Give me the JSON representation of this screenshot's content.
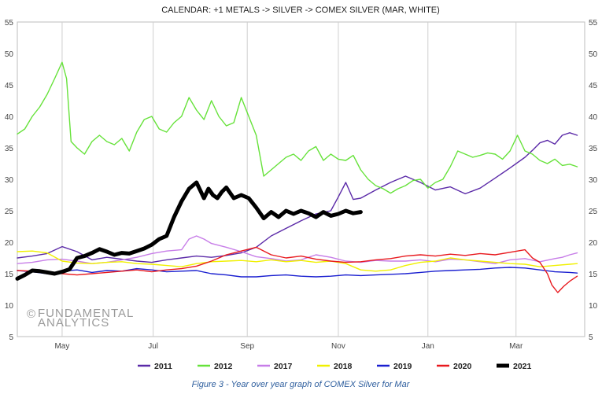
{
  "chart_data": {
    "type": "line",
    "title": "CALENDAR: +1 METALS -> SILVER -> COMEX SILVER (MAR, WHITE)",
    "xlabel": "",
    "ylabel": "",
    "x_tick_labels": [
      "May",
      "Jul",
      "Sep",
      "Nov",
      "Jan",
      "Mar"
    ],
    "x_tick_day_index": [
      30,
      91,
      154,
      215,
      275,
      334
    ],
    "x_range_days": [
      0,
      380
    ],
    "y_ticks": [
      5,
      10,
      15,
      20,
      25,
      30,
      35,
      40,
      45,
      50,
      55
    ],
    "ylim": [
      5,
      55
    ],
    "grid": "vertical lines at month ticks",
    "legend_position": "bottom",
    "watermark_lines": [
      "FUNDAMENTAL",
      "ANALYTICS"
    ],
    "series": [
      {
        "name": "2011",
        "color": "#5b2aa8",
        "width": 1.4,
        "x": [
          0,
          10,
          20,
          30,
          40,
          50,
          60,
          70,
          80,
          90,
          100,
          110,
          120,
          130,
          140,
          150,
          160,
          170,
          180,
          190,
          200,
          210,
          215,
          220,
          225,
          230,
          240,
          250,
          260,
          270,
          280,
          290,
          300,
          310,
          320,
          330,
          340,
          345,
          350,
          355,
          360,
          365,
          370,
          375
        ],
        "y": [
          17.5,
          17.8,
          18.2,
          19.3,
          18.5,
          17.2,
          17.6,
          17.3,
          17.0,
          16.8,
          17.2,
          17.5,
          17.8,
          17.6,
          17.9,
          18.3,
          19.2,
          21.0,
          22.2,
          23.4,
          24.5,
          25.0,
          27.2,
          29.5,
          26.8,
          27.0,
          28.3,
          29.5,
          30.5,
          29.5,
          28.3,
          28.8,
          27.7,
          28.6,
          30.2,
          31.8,
          33.5,
          34.6,
          35.8,
          36.2,
          35.6,
          37.0,
          37.4,
          37.0
        ]
      },
      {
        "name": "2012",
        "color": "#66e23a",
        "width": 1.4,
        "x": [
          0,
          5,
          10,
          15,
          20,
          25,
          30,
          33,
          36,
          40,
          45,
          50,
          55,
          60,
          65,
          70,
          75,
          80,
          85,
          90,
          95,
          100,
          105,
          110,
          115,
          120,
          125,
          130,
          135,
          140,
          145,
          150,
          155,
          160,
          165,
          170,
          175,
          180,
          185,
          190,
          195,
          200,
          205,
          210,
          215,
          220,
          225,
          230,
          235,
          240,
          245,
          250,
          255,
          260,
          265,
          270,
          275,
          280,
          285,
          290,
          295,
          300,
          305,
          310,
          315,
          320,
          325,
          330,
          335,
          340,
          345,
          350,
          355,
          360,
          365,
          370,
          375
        ],
        "y": [
          37.2,
          38.0,
          40.0,
          41.5,
          43.5,
          46.0,
          48.6,
          46.0,
          36.0,
          35.0,
          34.0,
          36.0,
          37.0,
          36.0,
          35.5,
          36.5,
          34.5,
          37.5,
          39.5,
          40.0,
          38.0,
          37.5,
          39.0,
          40.0,
          43.0,
          41.0,
          39.5,
          42.5,
          40.0,
          38.5,
          39.0,
          43.0,
          40.0,
          37.0,
          30.5,
          31.5,
          32.5,
          33.5,
          34.0,
          33.0,
          34.5,
          35.2,
          33.0,
          34.0,
          33.2,
          33.0,
          33.8,
          31.5,
          30.0,
          29.0,
          28.5,
          27.8,
          28.5,
          29.0,
          29.8,
          30.0,
          28.6,
          29.5,
          30.0,
          32.0,
          34.5,
          34.0,
          33.5,
          33.8,
          34.2,
          34.0,
          33.2,
          34.5,
          37.0,
          34.5,
          34.0,
          33.0,
          32.5,
          33.2,
          32.2,
          32.4,
          32.0
        ]
      },
      {
        "name": "2017",
        "color": "#c77de8",
        "width": 1.4,
        "x": [
          0,
          10,
          20,
          30,
          40,
          50,
          60,
          70,
          80,
          90,
          100,
          110,
          115,
          120,
          125,
          130,
          140,
          150,
          160,
          170,
          180,
          190,
          200,
          210,
          220,
          230,
          240,
          250,
          260,
          270,
          280,
          290,
          300,
          310,
          320,
          330,
          340,
          350,
          360,
          365,
          370,
          375
        ],
        "y": [
          16.6,
          16.8,
          17.2,
          17.3,
          17.0,
          16.6,
          16.8,
          17.2,
          17.6,
          18.2,
          18.6,
          18.8,
          20.5,
          21.0,
          20.5,
          19.8,
          19.2,
          18.5,
          17.7,
          17.4,
          17.0,
          17.2,
          18.0,
          17.6,
          17.0,
          16.8,
          17.1,
          17.0,
          17.0,
          17.2,
          16.9,
          17.3,
          17.2,
          16.9,
          16.6,
          17.2,
          17.4,
          16.9,
          17.4,
          17.6,
          18.0,
          18.3
        ]
      },
      {
        "name": "2018",
        "color": "#f0f000",
        "width": 1.4,
        "x": [
          0,
          10,
          20,
          30,
          40,
          50,
          60,
          70,
          80,
          90,
          100,
          110,
          120,
          130,
          140,
          150,
          160,
          170,
          180,
          190,
          200,
          210,
          220,
          230,
          240,
          250,
          260,
          270,
          280,
          290,
          300,
          310,
          320,
          330,
          340,
          350,
          360,
          370,
          375
        ],
        "y": [
          18.5,
          18.6,
          18.3,
          17.0,
          16.7,
          16.6,
          16.8,
          16.9,
          16.6,
          16.5,
          16.3,
          16.1,
          16.6,
          16.9,
          17.0,
          17.1,
          16.9,
          17.2,
          16.9,
          17.1,
          16.8,
          17.0,
          16.6,
          15.6,
          15.4,
          15.6,
          16.3,
          16.8,
          17.0,
          17.5,
          17.2,
          17.0,
          16.8,
          16.6,
          16.5,
          16.1,
          16.3,
          16.5,
          16.6
        ]
      },
      {
        "name": "2019",
        "color": "#1a1fd0",
        "width": 1.4,
        "x": [
          0,
          10,
          20,
          30,
          40,
          50,
          60,
          70,
          80,
          90,
          100,
          110,
          120,
          130,
          140,
          150,
          160,
          170,
          180,
          190,
          200,
          210,
          220,
          230,
          240,
          250,
          260,
          270,
          280,
          290,
          300,
          310,
          320,
          330,
          340,
          350,
          360,
          370,
          375
        ],
        "y": [
          15.5,
          15.3,
          15.0,
          15.4,
          15.6,
          15.2,
          15.5,
          15.4,
          15.8,
          15.6,
          15.3,
          15.4,
          15.5,
          15.0,
          14.8,
          14.5,
          14.5,
          14.7,
          14.8,
          14.6,
          14.5,
          14.6,
          14.8,
          14.7,
          14.8,
          14.9,
          15.0,
          15.2,
          15.4,
          15.5,
          15.6,
          15.7,
          15.9,
          16.0,
          15.9,
          15.6,
          15.3,
          15.2,
          15.1
        ]
      },
      {
        "name": "2020",
        "color": "#e8191e",
        "width": 1.4,
        "x": [
          0,
          10,
          20,
          30,
          40,
          50,
          60,
          70,
          80,
          90,
          100,
          110,
          120,
          130,
          140,
          150,
          160,
          170,
          180,
          190,
          200,
          210,
          220,
          230,
          240,
          250,
          260,
          270,
          280,
          290,
          300,
          310,
          320,
          330,
          340,
          345,
          350,
          355,
          358,
          362,
          366,
          370,
          375
        ],
        "y": [
          15.5,
          15.4,
          15.2,
          15.0,
          14.8,
          15.0,
          15.2,
          15.4,
          15.6,
          15.3,
          15.6,
          15.8,
          16.2,
          17.0,
          18.0,
          18.6,
          19.2,
          18.0,
          17.5,
          17.8,
          17.3,
          17.0,
          16.8,
          16.9,
          17.2,
          17.4,
          17.8,
          18.0,
          17.8,
          18.1,
          17.9,
          18.2,
          18.0,
          18.4,
          18.8,
          17.5,
          16.8,
          15.0,
          13.2,
          12.0,
          13.0,
          13.8,
          14.6
        ]
      },
      {
        "name": "2021",
        "color": "#000000",
        "width": 5,
        "x": [
          0,
          5,
          10,
          15,
          20,
          25,
          30,
          35,
          40,
          45,
          50,
          55,
          60,
          65,
          70,
          75,
          80,
          85,
          90,
          95,
          100,
          105,
          110,
          115,
          120,
          125,
          128,
          131,
          134,
          137,
          140,
          145,
          150,
          155,
          160,
          165,
          170,
          175,
          180,
          185,
          190,
          195,
          200,
          205,
          210,
          215,
          220,
          225,
          230
        ],
        "y": [
          14.2,
          14.8,
          15.5,
          15.4,
          15.2,
          15.0,
          15.3,
          15.7,
          17.5,
          17.8,
          18.3,
          18.9,
          18.5,
          18.0,
          18.3,
          18.2,
          18.6,
          19.0,
          19.6,
          20.5,
          21.0,
          24.0,
          26.5,
          28.5,
          29.5,
          27.0,
          28.5,
          27.5,
          27.0,
          28.0,
          28.7,
          27.0,
          27.5,
          27.0,
          25.5,
          23.8,
          24.8,
          24.0,
          25.0,
          24.5,
          25.0,
          24.6,
          24.0,
          24.8,
          24.2,
          24.5,
          25.0,
          24.6,
          24.8
        ]
      }
    ]
  },
  "caption": "Figure 3 - Year over year graph of COMEX Silver for Mar",
  "axis_tick_color": "#444444",
  "grid_color": "#cfcfcf"
}
